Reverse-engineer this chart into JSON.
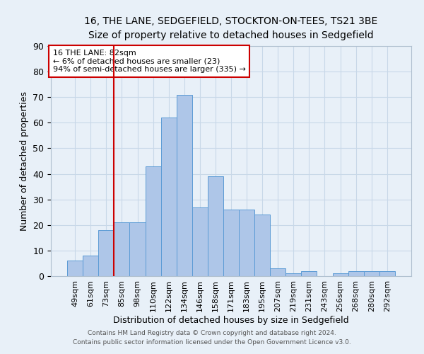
{
  "title_line1": "16, THE LANE, SEDGEFIELD, STOCKTON-ON-TEES, TS21 3BE",
  "title_line2": "Size of property relative to detached houses in Sedgefield",
  "xlabel": "Distribution of detached houses by size in Sedgefield",
  "ylabel": "Number of detached properties",
  "categories": [
    "49sqm",
    "61sqm",
    "73sqm",
    "85sqm",
    "98sqm",
    "110sqm",
    "122sqm",
    "134sqm",
    "146sqm",
    "158sqm",
    "171sqm",
    "183sqm",
    "195sqm",
    "207sqm",
    "219sqm",
    "231sqm",
    "243sqm",
    "256sqm",
    "268sqm",
    "280sqm",
    "292sqm"
  ],
  "values": [
    6,
    8,
    18,
    21,
    21,
    43,
    62,
    71,
    27,
    39,
    26,
    26,
    24,
    3,
    1,
    2,
    0,
    1,
    2,
    2,
    2
  ],
  "bar_color": "#aec6e8",
  "bar_edge_color": "#5b9bd5",
  "vline_color": "#cc0000",
  "annotation_text": "16 THE LANE: 82sqm\n← 6% of detached houses are smaller (23)\n94% of semi-detached houses are larger (335) →",
  "annotation_box_color": "#ffffff",
  "annotation_box_edge": "#cc0000",
  "ylim": [
    0,
    90
  ],
  "yticks": [
    0,
    10,
    20,
    30,
    40,
    50,
    60,
    70,
    80,
    90
  ],
  "grid_color": "#c8d8e8",
  "bg_color": "#e8f0f8",
  "footer_line1": "Contains HM Land Registry data © Crown copyright and database right 2024.",
  "footer_line2": "Contains public sector information licensed under the Open Government Licence v3.0."
}
